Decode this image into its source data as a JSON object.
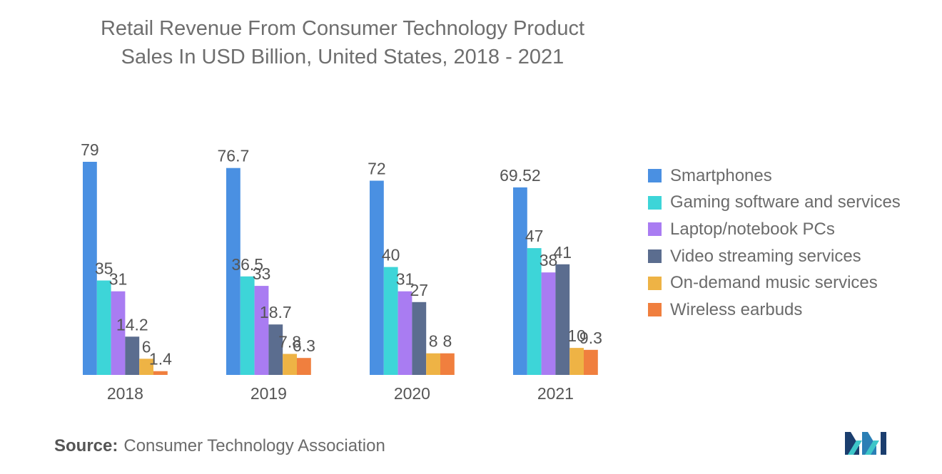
{
  "title_line1": "Retail Revenue From Consumer Technology Product",
  "title_line2": "Sales In USD Billion, United States, 2018 - 2021",
  "source_label": "Source:",
  "source_text": "Consumer Technology Association",
  "logo_name": "mordor-intelligence-logo",
  "chart_data": {
    "type": "bar",
    "title": "Retail Revenue From Consumer Technology Product Sales In USD Billion, United States, 2018 - 2021",
    "categories": [
      "2018",
      "2019",
      "2020",
      "2021"
    ],
    "series": [
      {
        "name": "Smartphones",
        "color": "#4a90e2",
        "values": [
          79,
          76.7,
          72,
          69.52
        ],
        "labels": [
          "79",
          "76.7",
          "72",
          "69.52"
        ]
      },
      {
        "name": "Gaming software and services",
        "color": "#3dd5d8",
        "values": [
          35,
          36.5,
          40,
          47
        ],
        "labels": [
          "35",
          "36.5",
          "40",
          "47"
        ]
      },
      {
        "name": "Laptop/notebook PCs",
        "color": "#a97cf2",
        "values": [
          31,
          33,
          31,
          38
        ],
        "labels": [
          "31",
          "33",
          "31",
          "38"
        ]
      },
      {
        "name": "Video streaming services",
        "color": "#5b6d8f",
        "values": [
          14.2,
          18.7,
          27,
          41
        ],
        "labels": [
          "14.2",
          "18.7",
          "27",
          "41"
        ]
      },
      {
        "name": "On-demand music services",
        "color": "#eeb345",
        "values": [
          6,
          7.8,
          8,
          10
        ],
        "labels": [
          "6",
          "7.8",
          "8",
          "10"
        ]
      },
      {
        "name": "Wireless earbuds",
        "color": "#f07f3e",
        "values": [
          1.4,
          6.3,
          8,
          9.3
        ],
        "labels": [
          "1.4",
          "6.3",
          "8",
          "9.3"
        ]
      }
    ],
    "legend_position": "right",
    "grid": false,
    "ylim": [
      0,
      90
    ]
  }
}
